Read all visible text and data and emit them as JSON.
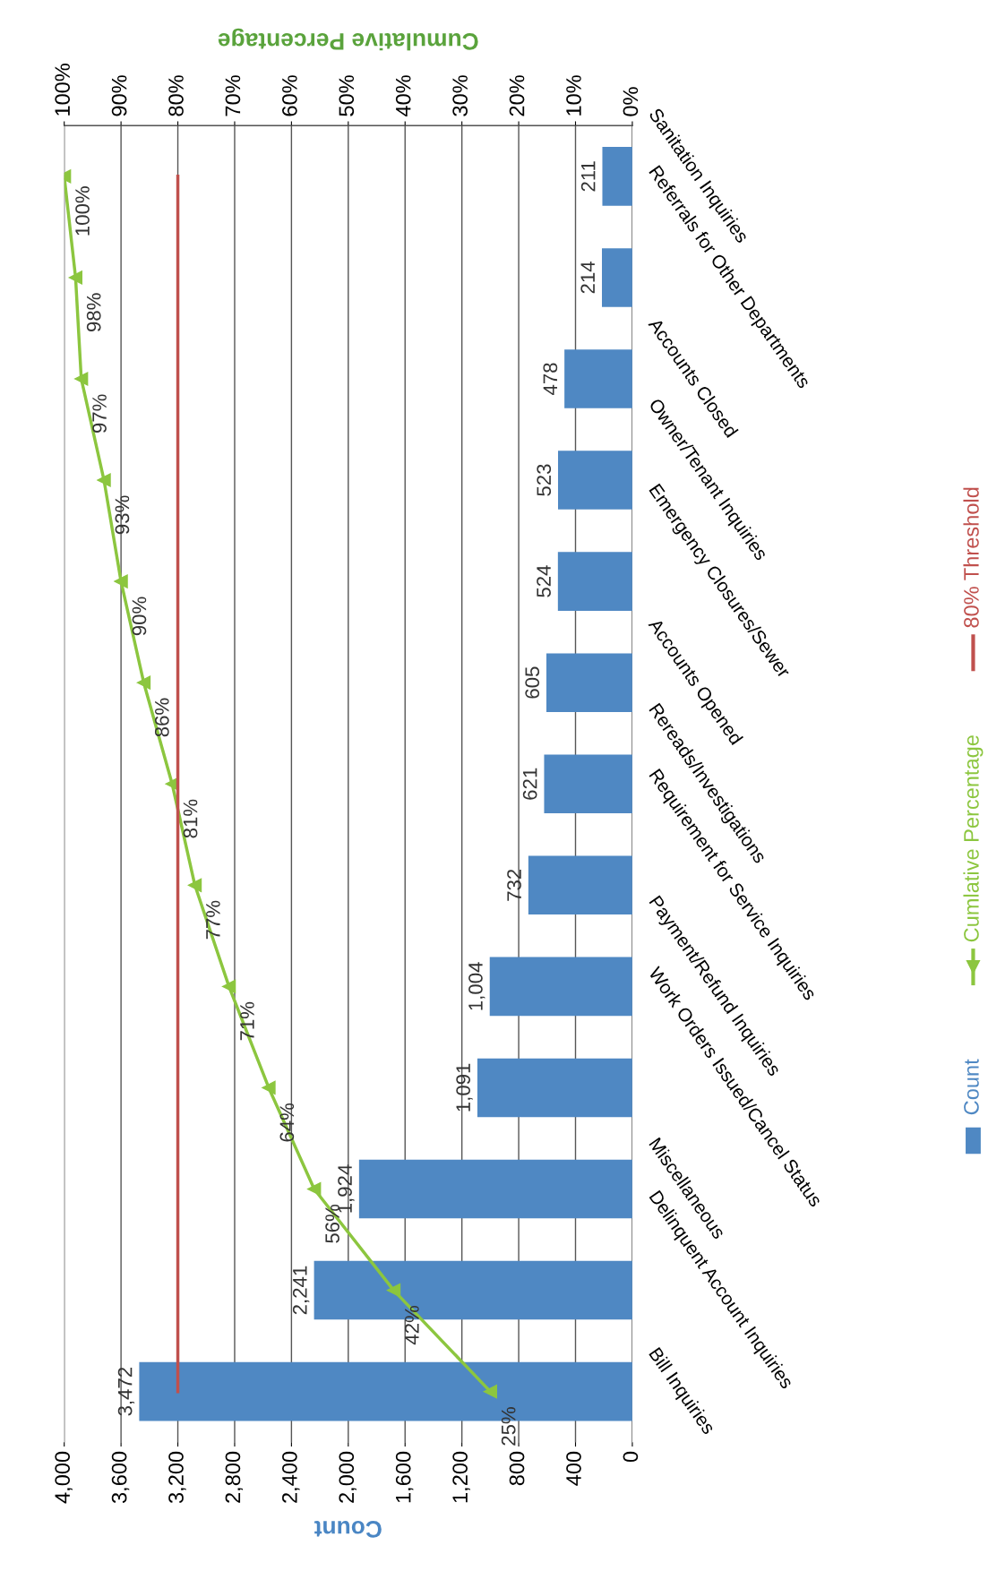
{
  "chart_data": {
    "type": "bar",
    "orientation": "horizontal",
    "xlabel": "Count",
    "x2label": "Cumulative Percentage",
    "categories": [
      "Sanitation Inquiries",
      "Referrals for Other Departments",
      "Accounts Closed",
      "Owner/Tenant Inquiries",
      "Emergency Closures/Sewer",
      "Accounts Opened",
      "Rereads/Investigations",
      "Requirement for Service Inquiries",
      "Payment/Refund Inquiries",
      "Work Orders Issued/Cancel Status",
      "Miscellaneous",
      "Delinquent Account Inquiries",
      "Bill Inquiries"
    ],
    "series": [
      {
        "name": "Count",
        "color": "#4f88c3",
        "values": [
          211,
          214,
          478,
          523,
          524,
          605,
          621,
          732,
          1004,
          1091,
          1924,
          2241,
          3472
        ],
        "value_labels": [
          "211",
          "214",
          "478",
          "523",
          "524",
          "605",
          "621",
          "732",
          "1,004",
          "1,091",
          "1,924",
          "2,241",
          "3,472"
        ]
      },
      {
        "name": "Cumlative Percentage",
        "type": "line",
        "axis": "x2",
        "color": "#8cc63f",
        "marker": "triangle",
        "values": [
          100,
          98,
          97,
          93,
          90,
          86,
          81,
          77,
          71,
          64,
          56,
          42,
          25
        ],
        "value_labels": [
          "100%",
          "98%",
          "97%",
          "93%",
          "90%",
          "86%",
          "81%",
          "77%",
          "71%",
          "64%",
          "56%",
          "42%",
          "25%"
        ]
      },
      {
        "name": "80% Threshold",
        "type": "line",
        "axis": "x2",
        "color": "#c0504d",
        "values": [
          80,
          80,
          80,
          80,
          80,
          80,
          80,
          80,
          80,
          80,
          80,
          80,
          80
        ]
      }
    ],
    "xlim": [
      4000,
      0
    ],
    "xticks": [
      {
        "value": 4000,
        "label": "4,000"
      },
      {
        "value": 3600,
        "label": "3,600"
      },
      {
        "value": 3200,
        "label": "3,200"
      },
      {
        "value": 2800,
        "label": "2,800"
      },
      {
        "value": 2400,
        "label": "2,400"
      },
      {
        "value": 2000,
        "label": "2,000"
      },
      {
        "value": 1600,
        "label": "1,600"
      },
      {
        "value": 1200,
        "label": "1,200"
      },
      {
        "value": 800,
        "label": "800"
      },
      {
        "value": 400,
        "label": "400"
      },
      {
        "value": 0,
        "label": "0"
      }
    ],
    "x2lim": [
      100,
      0
    ],
    "x2ticks": [
      {
        "value": 100,
        "label": "100%"
      },
      {
        "value": 90,
        "label": "90%"
      },
      {
        "value": 80,
        "label": "80%"
      },
      {
        "value": 70,
        "label": "70%"
      },
      {
        "value": 60,
        "label": "60%"
      },
      {
        "value": 50,
        "label": "50%"
      },
      {
        "value": 40,
        "label": "40%"
      },
      {
        "value": 30,
        "label": "30%"
      },
      {
        "value": 20,
        "label": "20%"
      },
      {
        "value": 10,
        "label": "10%"
      },
      {
        "value": 0,
        "label": "0%"
      }
    ],
    "grid": "x",
    "legend": "right"
  }
}
